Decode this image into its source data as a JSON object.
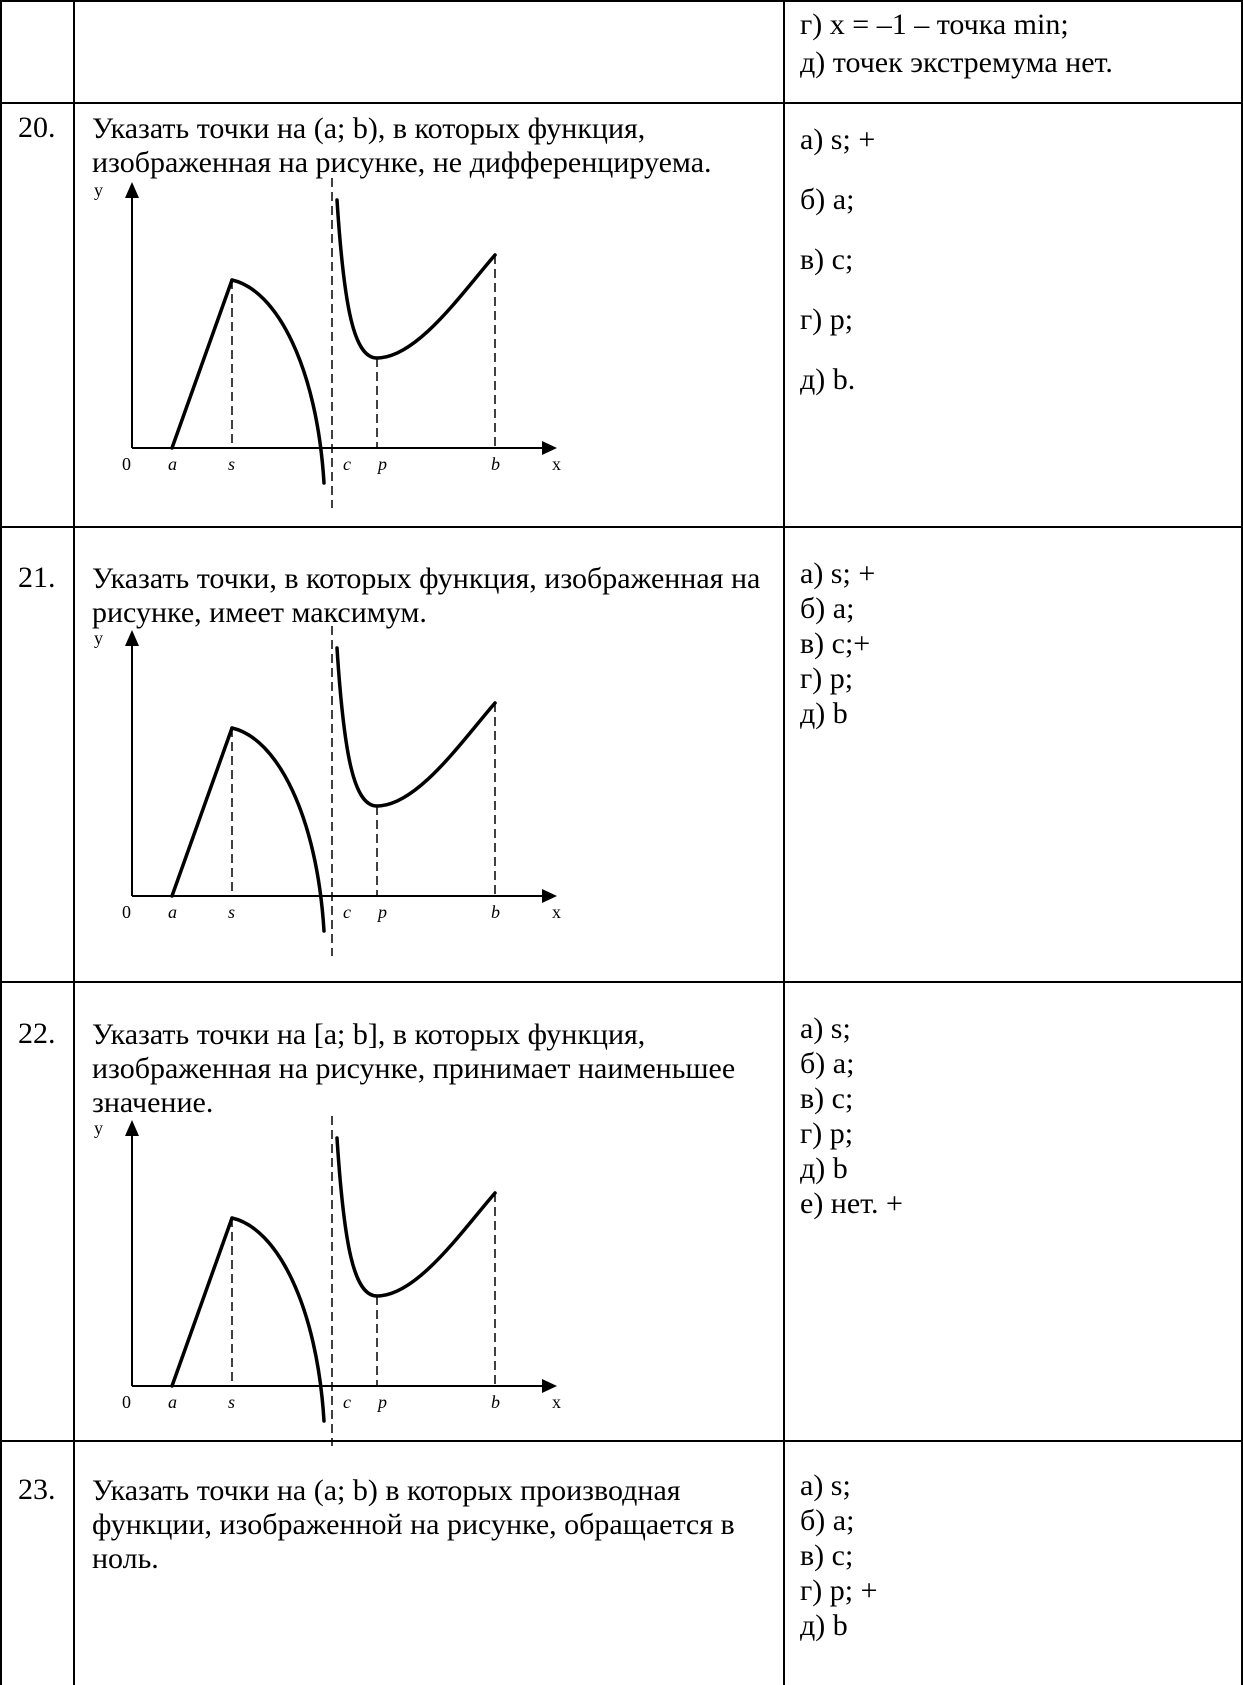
{
  "rows": [
    {
      "id": "r19",
      "number": "",
      "question": "",
      "options": [
        "г) x = –1 – точка min;",
        "д) точек экстремума нет."
      ],
      "option_spacing": "tight"
    },
    {
      "id": "r20",
      "number": "20.",
      "question": "Указать точки на (a; b), в которых функция, изображенная на рисунке, не дифференцируема.",
      "options": [
        "а) s; +",
        "б) а;",
        "в) c;",
        "г) p;",
        "д) b."
      ],
      "option_spacing": "wide"
    },
    {
      "id": "r21",
      "number": "21.",
      "question": "Указать точки, в которых функция, изображенная на рисунке, имеет максимум.",
      "options": [
        "а) s; +",
        "б) а;",
        "в) c;+",
        "г) p;",
        "д) b"
      ],
      "option_spacing": "tight"
    },
    {
      "id": "r22",
      "number": "22.",
      "question": "Указать точки на [a; b], в которых функция, изображенная на рисунке, принимает наименьшее значение.",
      "options": [
        "а) s;",
        "б) а;",
        "в) c;",
        "г) p;",
        "д) b",
        "е) нет. +"
      ],
      "option_spacing": "tight"
    },
    {
      "id": "r23",
      "number": "23.",
      "question": "Указать точки на (a; b) в которых производная функции, изображенной на рисунке, обращается в ноль.",
      "options": [
        "а) s;",
        "б) а;",
        "в) c;",
        "г) p; +",
        "д) b"
      ],
      "option_spacing": "tight"
    }
  ],
  "graph": {
    "y_axis_label": "y",
    "x_axis_label": "x",
    "origin_label": "0",
    "point_labels": [
      "a",
      "s",
      "c",
      "p",
      "b"
    ]
  }
}
